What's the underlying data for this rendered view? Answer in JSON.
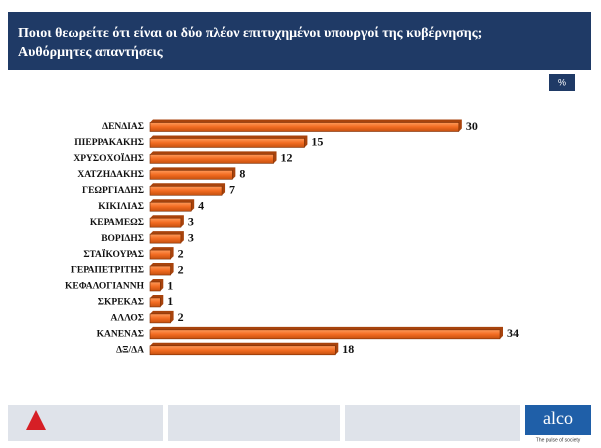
{
  "chart_data": {
    "type": "bar",
    "orientation": "horizontal",
    "title": "Ποιοι θεωρείτε ότι είναι οι δύο πλέον επιτυχημένοι υπουργοί της κυβέρνησης;",
    "subtitle": "Αυθόρμητες απαντήσεις",
    "unit_badge": "%",
    "categories": [
      "ΔΕΝΔΙΑΣ",
      "ΠΙΕΡΡΑΚΑΚΗΣ",
      "ΧΡΥΣΟΧΟΪΔΗΣ",
      "ΧΑΤΖΗΔΑΚΗΣ",
      "ΓΕΩΡΓΙΑΔΗΣ",
      "ΚΙΚΙΛΙΑΣ",
      "ΚΕΡΑΜΕΩΣ",
      "ΒΟΡΙΔΗΣ",
      "ΣΤΑΪΚΟΥΡΑΣ",
      "ΓΕΡΑΠΕΤΡΙΤΗΣ",
      "ΚΕΦΑΛΟΓΙΑΝΝΗ",
      "ΣΚΡΕΚΑΣ",
      "ΑΛΛΟΣ",
      "ΚΑΝΕΝΑΣ",
      "ΔΞ/ΔΑ"
    ],
    "values": [
      30,
      15,
      12,
      8,
      7,
      4,
      3,
      3,
      2,
      2,
      1,
      1,
      2,
      34,
      18
    ],
    "color": "#f26b21",
    "brand": "alco",
    "tagline": "The pulse of society"
  }
}
